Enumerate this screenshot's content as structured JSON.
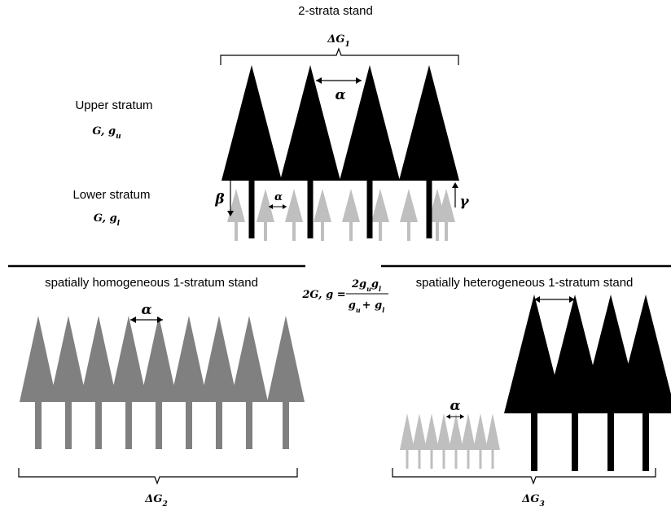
{
  "title": "2-strata stand",
  "upper": {
    "label": "Upper stratum",
    "param": "G, g",
    "param_sub": "u"
  },
  "lower": {
    "label": "Lower stratum",
    "param": "G, g",
    "param_sub": "l"
  },
  "homogeneous": {
    "label": "spatially homogeneous 1-stratum stand"
  },
  "heterogeneous": {
    "label": "spatially heterogeneous 1-stratum stand"
  },
  "symbols": {
    "alpha": "α",
    "beta": "β",
    "gamma": "γ",
    "delta": "Δ",
    "G": "G"
  },
  "subscripts": {
    "one": "1",
    "two": "2",
    "three": "3"
  },
  "formula": {
    "lhs": "2G, g =",
    "num": "2g",
    "num_sub1": "u",
    "num_g2": "g",
    "num_sub2": "l",
    "den": "g",
    "den_sub1": "u",
    "den_plus": "+ g",
    "den_sub2": "l"
  },
  "colors": {
    "dark": "#000000",
    "medium": "#808080",
    "light": "#bfbfbf"
  }
}
